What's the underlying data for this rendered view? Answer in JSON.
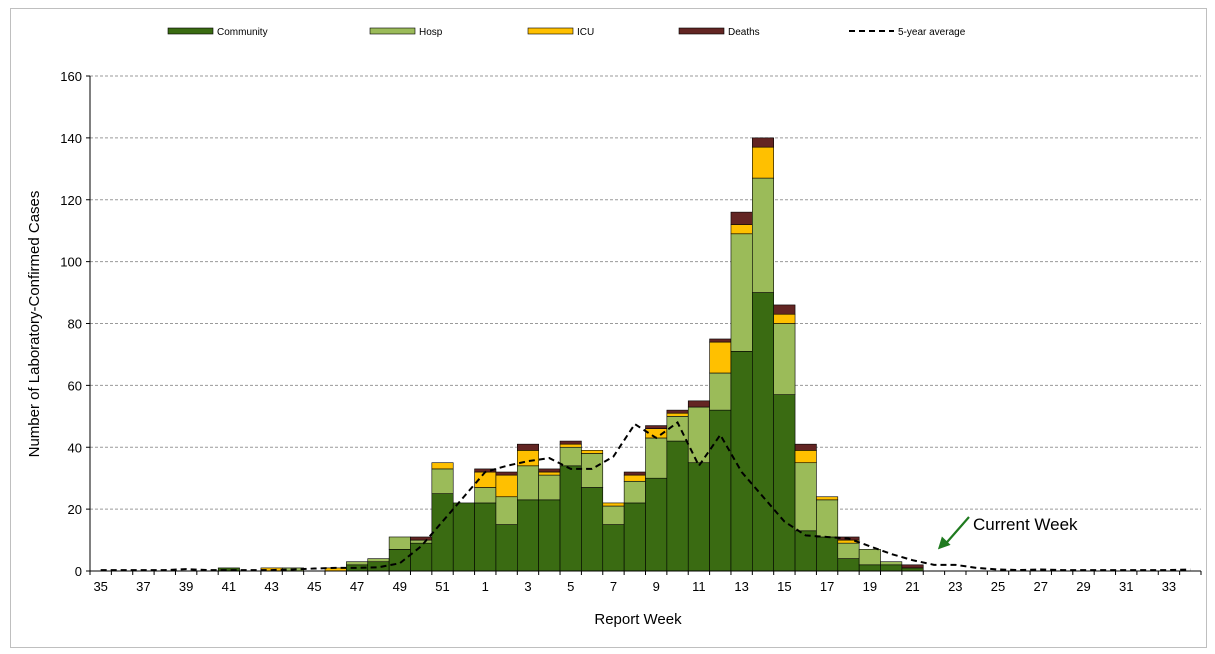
{
  "chart_data": {
    "type": "bar",
    "stacked": true,
    "categories": [
      "35",
      "36",
      "37",
      "38",
      "39",
      "40",
      "41",
      "42",
      "43",
      "44",
      "45",
      "46",
      "47",
      "48",
      "49",
      "50",
      "51",
      "52",
      "1",
      "2",
      "3",
      "4",
      "5",
      "6",
      "7",
      "8",
      "9",
      "10",
      "11",
      "12",
      "13",
      "14",
      "15",
      "16",
      "17",
      "18",
      "19",
      "20",
      "21",
      "22",
      "23",
      "24",
      "25",
      "26",
      "27",
      "28",
      "29",
      "30",
      "31",
      "32",
      "33",
      "34"
    ],
    "x_tick_labels": [
      "35",
      "37",
      "39",
      "41",
      "43",
      "45",
      "47",
      "49",
      "51",
      "1",
      "3",
      "5",
      "7",
      "9",
      "11",
      "13",
      "15",
      "17",
      "19",
      "21",
      "23",
      "25",
      "27",
      "29",
      "31",
      "33"
    ],
    "series": [
      {
        "name": "Community",
        "color": "#3a6b12",
        "values": [
          0,
          0,
          0,
          0,
          0,
          0,
          1,
          0,
          0,
          0,
          0,
          0,
          2,
          3,
          7,
          9,
          25,
          22,
          22,
          15,
          23,
          23,
          34,
          27,
          15,
          22,
          30,
          42,
          35,
          52,
          71,
          90,
          57,
          13,
          11,
          4,
          2,
          2,
          1,
          0,
          0,
          0,
          0,
          0,
          0,
          0,
          0,
          0,
          0,
          0,
          0,
          0
        ]
      },
      {
        "name": "Hosp",
        "color": "#9bbb59",
        "values": [
          0,
          0,
          0,
          0,
          0,
          0,
          0,
          0,
          0,
          1,
          0,
          0,
          1,
          1,
          4,
          1,
          8,
          0,
          5,
          9,
          11,
          8,
          6,
          11,
          6,
          7,
          13,
          8,
          18,
          12,
          38,
          37,
          23,
          22,
          12,
          5,
          5,
          1,
          0,
          0,
          0,
          0,
          0,
          0,
          0,
          0,
          0,
          0,
          0,
          0,
          0,
          0
        ]
      },
      {
        "name": "ICU",
        "color": "#ffc000",
        "values": [
          0,
          0,
          0,
          0,
          0,
          0,
          0,
          0,
          1,
          0,
          0,
          1,
          0,
          0,
          0,
          0,
          2,
          0,
          5,
          7,
          5,
          1,
          1,
          1,
          1,
          2,
          3,
          1,
          0,
          10,
          3,
          10,
          3,
          4,
          1,
          1,
          0,
          0,
          0,
          0,
          0,
          0,
          0,
          0,
          0,
          0,
          0,
          0,
          0,
          0,
          0,
          0
        ]
      },
      {
        "name": "Deaths",
        "color": "#632523",
        "values": [
          0,
          0,
          0,
          0,
          0,
          0,
          0,
          0,
          0,
          0,
          0,
          0,
          0,
          0,
          0,
          1,
          0,
          0,
          1,
          1,
          2,
          1,
          1,
          0,
          0,
          1,
          1,
          1,
          2,
          1,
          4,
          3,
          3,
          2,
          0,
          1,
          0,
          0,
          1,
          0,
          0,
          0,
          0,
          0,
          0,
          0,
          0,
          0,
          0,
          0,
          0,
          0
        ]
      }
    ],
    "average": {
      "name": "5-year average",
      "color": "#000000",
      "values": [
        0.3,
        0.3,
        0.3,
        0.3,
        0.6,
        0.3,
        0.3,
        0.3,
        0.3,
        0.5,
        0.8,
        1,
        1,
        1.2,
        2.5,
        8,
        16,
        24,
        32,
        34,
        35.5,
        36.5,
        33,
        33,
        37,
        47.5,
        43,
        48,
        34,
        44,
        32,
        24,
        16,
        11.5,
        11,
        10.5,
        8,
        5.5,
        3.5,
        2,
        2,
        1,
        0.5,
        0.3,
        0.5,
        0.3,
        0.3,
        0.3,
        0.3,
        0.3,
        0.3,
        0.5
      ]
    },
    "ylabel": "Number of Laboratory-Confirmed Cases",
    "xlabel": "Report Week",
    "ylim": [
      0,
      160
    ],
    "yticks": [
      0,
      20,
      40,
      60,
      80,
      100,
      120,
      140,
      160
    ],
    "grid": true,
    "legend_position": "top",
    "annotation": {
      "text": "Current Week",
      "arrow_color": "#1f7a1f",
      "points_to_category": "22"
    }
  }
}
